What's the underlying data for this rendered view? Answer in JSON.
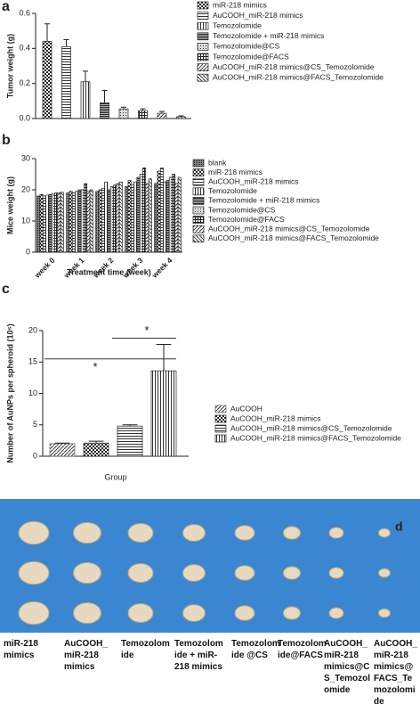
{
  "chart_data": [
    {
      "type": "bar",
      "panel_label": "a",
      "y_label": "Tumor weight (g)",
      "categories": [
        null
      ],
      "ylim": [
        0,
        0.6
      ],
      "yticks": [
        {
          "value": 0,
          "label": "0.0"
        },
        {
          "value": 0.2,
          "label": "0.2"
        },
        {
          "value": 0.4,
          "label": "0.4"
        },
        {
          "value": 0.6,
          "label": "0.6"
        }
      ],
      "series": [
        {
          "name": "miR-218 mimics",
          "color": "#222",
          "pattern": "checker",
          "values": [
            0.44
          ],
          "errors": [
            0.1
          ]
        },
        {
          "name": "AuCOOH_miR-218 mimics",
          "color": "#222",
          "pattern": "hlines",
          "values": [
            0.41
          ],
          "errors": [
            0.04
          ]
        },
        {
          "name": "Temozolomide",
          "color": "#222",
          "pattern": "vlines",
          "values": [
            0.21
          ],
          "errors": [
            0.06
          ]
        },
        {
          "name": "Temozolomide + miR-218 mimics",
          "color": "#222",
          "pattern": "hdense",
          "values": [
            0.09
          ],
          "errors": [
            0.07
          ]
        },
        {
          "name": "Temozolomide@CS",
          "color": "#222",
          "pattern": "dots",
          "values": [
            0.055
          ],
          "errors": [
            0.01
          ]
        },
        {
          "name": "Temozolomide@FACS",
          "color": "#222",
          "pattern": "grid",
          "values": [
            0.045
          ],
          "errors": [
            0.01
          ]
        },
        {
          "name": "AuCOOH_miR-218 mimics@CS_Temozolomide",
          "color": "#222",
          "pattern": "diag",
          "values": [
            0.03
          ],
          "errors": [
            0.01
          ]
        },
        {
          "name": "AuCOOH_miR-218 mimics@FACS_Temozolomide",
          "color": "#222",
          "pattern": "backdiag",
          "values": [
            0.01
          ],
          "errors": [
            0.005
          ]
        }
      ]
    },
    {
      "type": "bar",
      "panel_label": "b",
      "y_label": "Mice weight (g)",
      "x_label": "Treatment time (week)",
      "categories": [
        "week 0",
        "week 1",
        "week 2",
        "week 3",
        "week 4"
      ],
      "ylim": [
        0,
        30
      ],
      "yticks": [
        0,
        10,
        20,
        30
      ],
      "series": [
        {
          "name": "blank",
          "color": "#222",
          "pattern": "fine",
          "values": [
            18,
            19,
            19.5,
            21,
            22
          ]
        },
        {
          "name": "miR-218 mimics",
          "color": "#222",
          "pattern": "checker",
          "values": [
            18.5,
            19.5,
            20,
            23,
            26
          ]
        },
        {
          "name": "AuCOOH_miR-218 mimics",
          "color": "#222",
          "pattern": "hlines",
          "values": [
            18,
            19,
            20.5,
            21.5,
            27
          ]
        },
        {
          "name": "Temozolomide",
          "color": "#222",
          "pattern": "vlines",
          "values": [
            18.3,
            19.5,
            22.5,
            22.5,
            22.5
          ]
        },
        {
          "name": "Temozolomide + miR-218 mimics",
          "color": "#222",
          "pattern": "hdense",
          "values": [
            18.5,
            20,
            20,
            24,
            23
          ]
        },
        {
          "name": "Temozolomide@CS",
          "color": "#222",
          "pattern": "dots",
          "values": [
            18.8,
            20,
            21,
            25,
            24
          ]
        },
        {
          "name": "Temozolomide@FACS",
          "color": "#222",
          "pattern": "grid",
          "values": [
            19,
            22,
            21.5,
            27,
            25
          ]
        },
        {
          "name": "AuCOOH_miR-218 mimics@CS_Temozolomide",
          "color": "#222",
          "pattern": "diag",
          "values": [
            19,
            19.5,
            22,
            22,
            22
          ]
        },
        {
          "name": "AuCOOH_miR-218 mimics@FACS_Temozolomide",
          "color": "#222",
          "pattern": "backdiag",
          "values": [
            19.2,
            20,
            22.5,
            23.5,
            24
          ]
        }
      ]
    },
    {
      "type": "bar",
      "panel_label": "c",
      "y_label": "Number of AuNPs per spheroid (10⁶)",
      "x_label": "Group",
      "categories": [
        null
      ],
      "ylim": [
        0,
        20
      ],
      "yticks": [
        0,
        5,
        10,
        15,
        20
      ],
      "annotations": [
        "*",
        "*"
      ],
      "series": [
        {
          "name": "AuCOOH",
          "color": "#666",
          "pattern": "diag",
          "values": [
            2
          ],
          "errors": [
            0.1
          ]
        },
        {
          "name": "AuCOOH_miR-218 mimics",
          "color": "#222",
          "pattern": "checker",
          "values": [
            2.1
          ],
          "errors": [
            0.3
          ]
        },
        {
          "name": "AuCOOH_miR-218 mimics@CS_Temozolomide",
          "color": "#222",
          "pattern": "hlines",
          "values": [
            4.8
          ],
          "errors": [
            0.2
          ]
        },
        {
          "name": "AuCOOH_miR-218 mimics@FACS_Temozolomide",
          "color": "#222",
          "pattern": "vlines",
          "values": [
            13.6
          ],
          "errors": [
            4.2
          ]
        }
      ]
    }
  ],
  "photo": {
    "panel_label": "d",
    "columns": [
      "miR-218 mimics",
      "AuCOOH_ miR-218 mimics",
      "Temozolomide",
      "Temozolomide + miR-218 mimics",
      "Temozolomide @CS",
      "Temozolomide@FACS",
      "AuCOOH_miR-218 mimics@CS_Temozolomide",
      "AuCOOH_miR-218 mimics@FACS_Temozolomide"
    ]
  }
}
